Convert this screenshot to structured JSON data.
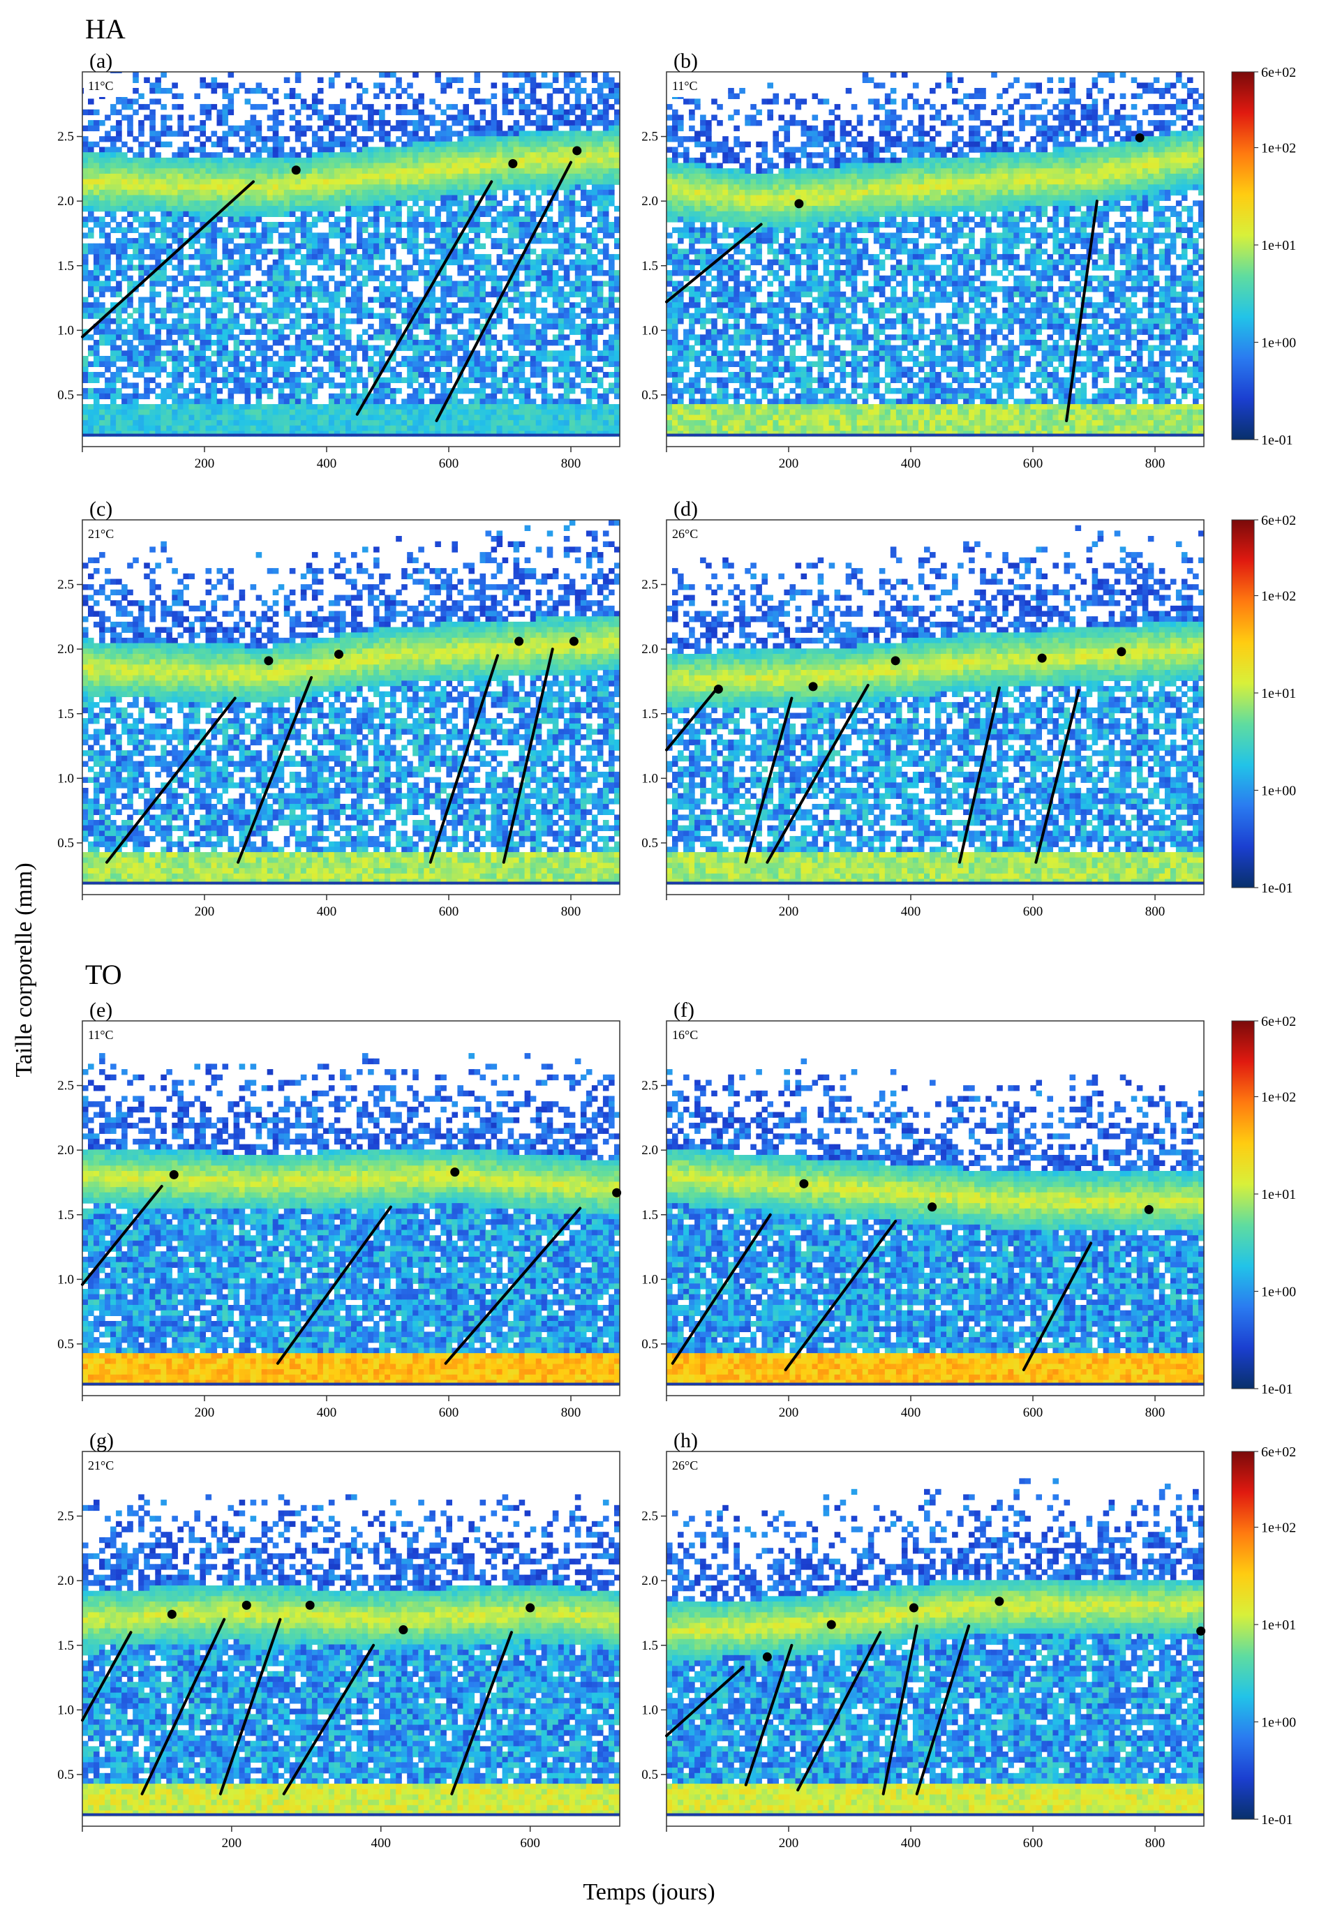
{
  "figure": {
    "ylabel": "Taille corporelle (mm)",
    "xlabel": "Temps (jours)",
    "groups": [
      "HA",
      "TO"
    ]
  },
  "colorbar": {
    "scale": "log",
    "range": [
      0.1,
      600
    ],
    "tick_labels": [
      "6e+02",
      "1e+02",
      "1e+01",
      "1e+00",
      "1e-01"
    ],
    "tick_values": [
      600,
      100,
      10,
      1,
      0.1
    ],
    "colors": [
      "#08306b",
      "#1b3fd0",
      "#2a7bf0",
      "#22c3e8",
      "#5fdca0",
      "#d8f03a",
      "#ffcc11",
      "#ff7a10",
      "#e01a10",
      "#7a0a0a"
    ]
  },
  "chart_data": [
    {
      "type": "heatmap",
      "panel": "(a)",
      "group": "HA",
      "temperature": "11°C",
      "xlim": [
        0,
        880
      ],
      "ylim": [
        0.1,
        3.0
      ],
      "xticks": [
        200,
        400,
        600,
        800
      ],
      "yticks": [
        0.5,
        1.0,
        1.5,
        2.0,
        2.5
      ],
      "main_band": [
        [
          0,
          2.15
        ],
        [
          300,
          2.1
        ],
        [
          500,
          2.2
        ],
        [
          700,
          2.3
        ],
        [
          880,
          2.35
        ]
      ],
      "cohort_lines": [
        [
          [
            0,
            0.95
          ],
          [
            280,
            2.15
          ]
        ],
        [
          [
            450,
            0.35
          ],
          [
            670,
            2.15
          ]
        ],
        [
          [
            580,
            0.3
          ],
          [
            800,
            2.3
          ]
        ]
      ],
      "points": [
        [
          350,
          2.24
        ],
        [
          705,
          2.29
        ],
        [
          810,
          2.39
        ]
      ]
    },
    {
      "type": "heatmap",
      "panel": "(b)",
      "group": "HA",
      "temperature": "11°C",
      "xlim": [
        0,
        880
      ],
      "ylim": [
        0.1,
        3.0
      ],
      "xticks": [
        200,
        400,
        600,
        800
      ],
      "yticks": [
        0.5,
        1.0,
        1.5,
        2.0,
        2.5
      ],
      "main_band": [
        [
          0,
          2.1
        ],
        [
          150,
          2.0
        ],
        [
          400,
          2.1
        ],
        [
          700,
          2.2
        ],
        [
          880,
          2.35
        ]
      ],
      "cohort_lines": [
        [
          [
            0,
            1.22
          ],
          [
            155,
            1.82
          ]
        ],
        [
          [
            655,
            0.3
          ],
          [
            705,
            2.0
          ]
        ]
      ],
      "points": [
        [
          217,
          1.98
        ],
        [
          775,
          2.49
        ]
      ]
    },
    {
      "type": "heatmap",
      "panel": "(c)",
      "group": "HA",
      "temperature": "21°C",
      "xlim": [
        0,
        880
      ],
      "ylim": [
        0.1,
        3.0
      ],
      "xticks": [
        200,
        400,
        600,
        800
      ],
      "yticks": [
        0.5,
        1.0,
        1.5,
        2.0,
        2.5
      ],
      "main_band": [
        [
          0,
          1.85
        ],
        [
          300,
          1.8
        ],
        [
          500,
          1.95
        ],
        [
          700,
          2.0
        ],
        [
          880,
          2.05
        ]
      ],
      "cohort_lines": [
        [
          [
            40,
            0.35
          ],
          [
            250,
            1.62
          ]
        ],
        [
          [
            255,
            0.35
          ],
          [
            375,
            1.78
          ]
        ],
        [
          [
            570,
            0.35
          ],
          [
            680,
            1.95
          ]
        ],
        [
          [
            690,
            0.35
          ],
          [
            770,
            2.0
          ]
        ]
      ],
      "points": [
        [
          305,
          1.91
        ],
        [
          420,
          1.96
        ],
        [
          715,
          2.06
        ],
        [
          805,
          2.06
        ]
      ]
    },
    {
      "type": "heatmap",
      "panel": "(d)",
      "group": "HA",
      "temperature": "26°C",
      "xlim": [
        0,
        880
      ],
      "ylim": [
        0.1,
        3.0
      ],
      "xticks": [
        200,
        400,
        600,
        800
      ],
      "yticks": [
        0.5,
        1.0,
        1.5,
        2.0,
        2.5
      ],
      "main_band": [
        [
          0,
          1.75
        ],
        [
          300,
          1.8
        ],
        [
          500,
          1.9
        ],
        [
          700,
          1.95
        ],
        [
          880,
          2.0
        ]
      ],
      "cohort_lines": [
        [
          [
            0,
            1.22
          ],
          [
            80,
            1.68
          ]
        ],
        [
          [
            130,
            0.35
          ],
          [
            205,
            1.62
          ]
        ],
        [
          [
            165,
            0.35
          ],
          [
            330,
            1.72
          ]
        ],
        [
          [
            480,
            0.35
          ],
          [
            545,
            1.7
          ]
        ],
        [
          [
            605,
            0.35
          ],
          [
            675,
            1.68
          ]
        ]
      ],
      "points": [
        [
          85,
          1.69
        ],
        [
          240,
          1.71
        ],
        [
          375,
          1.91
        ],
        [
          615,
          1.93
        ],
        [
          745,
          1.98
        ]
      ]
    },
    {
      "type": "heatmap",
      "panel": "(e)",
      "group": "TO",
      "temperature": "11°C",
      "xlim": [
        0,
        880
      ],
      "ylim": [
        0.1,
        3.0
      ],
      "xticks": [
        200,
        400,
        600,
        800
      ],
      "yticks": [
        0.5,
        1.0,
        1.5,
        2.0,
        2.5
      ],
      "main_band": [
        [
          0,
          1.8
        ],
        [
          300,
          1.75
        ],
        [
          600,
          1.8
        ],
        [
          880,
          1.7
        ]
      ],
      "cohort_lines": [
        [
          [
            0,
            0.96
          ],
          [
            130,
            1.72
          ]
        ],
        [
          [
            320,
            0.35
          ],
          [
            505,
            1.56
          ]
        ],
        [
          [
            595,
            0.35
          ],
          [
            815,
            1.55
          ]
        ]
      ],
      "points": [
        [
          150,
          1.81
        ],
        [
          610,
          1.83
        ],
        [
          875,
          1.67
        ]
      ]
    },
    {
      "type": "heatmap",
      "panel": "(f)",
      "group": "TO",
      "temperature": "16°C",
      "xlim": [
        0,
        880
      ],
      "ylim": [
        0.1,
        3.0
      ],
      "xticks": [
        200,
        400,
        600,
        800
      ],
      "yticks": [
        0.5,
        1.0,
        1.5,
        2.0,
        2.5
      ],
      "main_band": [
        [
          0,
          1.8
        ],
        [
          300,
          1.7
        ],
        [
          600,
          1.6
        ],
        [
          880,
          1.6
        ]
      ],
      "cohort_lines": [
        [
          [
            10,
            0.35
          ],
          [
            170,
            1.5
          ]
        ],
        [
          [
            195,
            0.3
          ],
          [
            375,
            1.45
          ]
        ],
        [
          [
            585,
            0.3
          ],
          [
            695,
            1.28
          ]
        ]
      ],
      "points": [
        [
          225,
          1.74
        ],
        [
          435,
          1.56
        ],
        [
          790,
          1.54
        ]
      ]
    },
    {
      "type": "heatmap",
      "panel": "(g)",
      "group": "TO",
      "temperature": "21°C",
      "xlim": [
        0,
        720
      ],
      "ylim": [
        0.1,
        3.0
      ],
      "xticks": [
        200,
        400,
        600
      ],
      "yticks": [
        0.5,
        1.0,
        1.5,
        2.0,
        2.5
      ],
      "main_band": [
        [
          0,
          1.7
        ],
        [
          200,
          1.75
        ],
        [
          400,
          1.7
        ],
        [
          600,
          1.75
        ],
        [
          720,
          1.7
        ]
      ],
      "cohort_lines": [
        [
          [
            0,
            0.92
          ],
          [
            65,
            1.6
          ]
        ],
        [
          [
            80,
            0.35
          ],
          [
            190,
            1.7
          ]
        ],
        [
          [
            185,
            0.35
          ],
          [
            265,
            1.7
          ]
        ],
        [
          [
            270,
            0.35
          ],
          [
            390,
            1.5
          ]
        ],
        [
          [
            495,
            0.35
          ],
          [
            575,
            1.6
          ]
        ]
      ],
      "points": [
        [
          120,
          1.74
        ],
        [
          220,
          1.81
        ],
        [
          305,
          1.81
        ],
        [
          430,
          1.62
        ],
        [
          600,
          1.79
        ]
      ]
    },
    {
      "type": "heatmap",
      "panel": "(h)",
      "group": "TO",
      "temperature": "26°C",
      "xlim": [
        0,
        880
      ],
      "ylim": [
        0.1,
        3.0
      ],
      "xticks": [
        200,
        400,
        600,
        800
      ],
      "yticks": [
        0.5,
        1.0,
        1.5,
        2.0,
        2.5
      ],
      "main_band": [
        [
          0,
          1.6
        ],
        [
          200,
          1.65
        ],
        [
          500,
          1.8
        ],
        [
          880,
          1.8
        ]
      ],
      "cohort_lines": [
        [
          [
            0,
            0.8
          ],
          [
            125,
            1.33
          ]
        ],
        [
          [
            130,
            0.42
          ],
          [
            205,
            1.5
          ]
        ],
        [
          [
            215,
            0.38
          ],
          [
            350,
            1.6
          ]
        ],
        [
          [
            355,
            0.35
          ],
          [
            410,
            1.65
          ]
        ],
        [
          [
            410,
            0.35
          ],
          [
            495,
            1.65
          ]
        ]
      ],
      "points": [
        [
          165,
          1.41
        ],
        [
          270,
          1.66
        ],
        [
          405,
          1.79
        ],
        [
          545,
          1.84
        ],
        [
          875,
          1.61
        ]
      ]
    }
  ]
}
